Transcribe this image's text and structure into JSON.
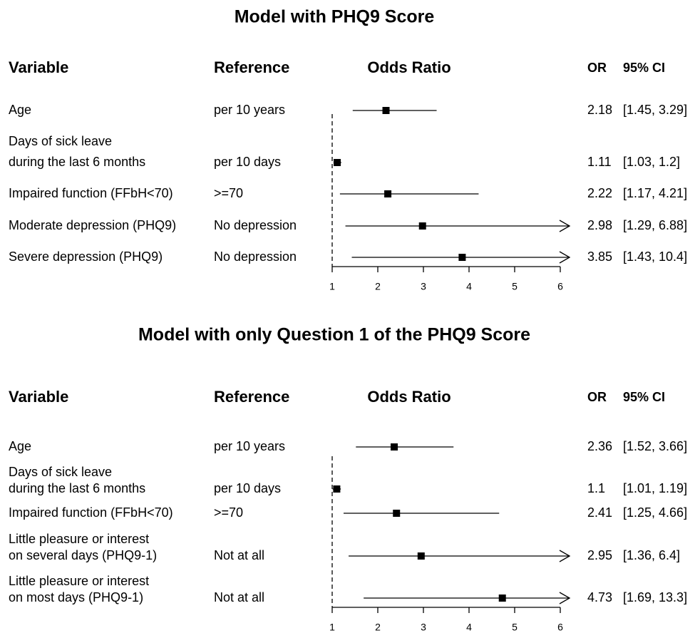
{
  "chart_data": [
    {
      "type": "forest",
      "title": "Model with PHQ9 Score",
      "headers": {
        "variable": "Variable",
        "reference": "Reference",
        "plot": "Odds Ratio",
        "or": "OR",
        "ci": "95% CI"
      },
      "categories": [
        [
          "Age"
        ],
        [
          "Days of sick leave",
          "during the last 6 months"
        ],
        [
          "Impaired function (FFbH<70)"
        ],
        [
          "Moderate depression (PHQ9)"
        ],
        [
          "Severe depression (PHQ9)"
        ]
      ],
      "references": [
        "per 10 years",
        "per 10 days",
        ">=70",
        "No depression",
        "No depression"
      ],
      "values": [
        2.18,
        1.11,
        2.22,
        2.98,
        3.85
      ],
      "ci_lower": [
        1.45,
        1.03,
        1.17,
        1.29,
        1.43
      ],
      "ci_upper": [
        3.29,
        1.2,
        4.21,
        6.88,
        10.4
      ],
      "ci_labels": [
        "[1.45, 3.29]",
        "[1.03, 1.2]",
        "[1.17, 4.21]",
        "[1.29, 6.88]",
        "[1.43, 10.4]"
      ],
      "xlim": [
        1,
        6
      ],
      "xticks": [
        1,
        2,
        3,
        4,
        5,
        6
      ],
      "reference_line": 1,
      "color": "#000000"
    },
    {
      "type": "forest",
      "title": "Model with only Question 1 of the PHQ9 Score",
      "headers": {
        "variable": "Variable",
        "reference": "Reference",
        "plot": "Odds Ratio",
        "or": "OR",
        "ci": "95% CI"
      },
      "categories": [
        [
          "Age"
        ],
        [
          "Days of sick leave",
          "during the last 6 months"
        ],
        [
          "Impaired function (FFbH<70)"
        ],
        [
          "Little pleasure or interest",
          "on several days (PHQ9-1)"
        ],
        [
          "Little pleasure or interest",
          "on most days (PHQ9-1)"
        ]
      ],
      "references": [
        "per 10 years",
        "per 10 days",
        ">=70",
        "Not at all",
        "Not at all"
      ],
      "values": [
        2.36,
        1.1,
        2.41,
        2.95,
        4.73
      ],
      "ci_lower": [
        1.52,
        1.01,
        1.25,
        1.36,
        1.69
      ],
      "ci_upper": [
        3.66,
        1.19,
        4.66,
        6.4,
        13.3
      ],
      "ci_labels": [
        "[1.52, 3.66]",
        "[1.01, 1.19]",
        "[1.25, 4.66]",
        "[1.36, 6.4]",
        "[1.69, 13.3]"
      ],
      "xlim": [
        1,
        6
      ],
      "xticks": [
        1,
        2,
        3,
        4,
        5,
        6
      ],
      "reference_line": 1,
      "color": "#000000"
    }
  ]
}
